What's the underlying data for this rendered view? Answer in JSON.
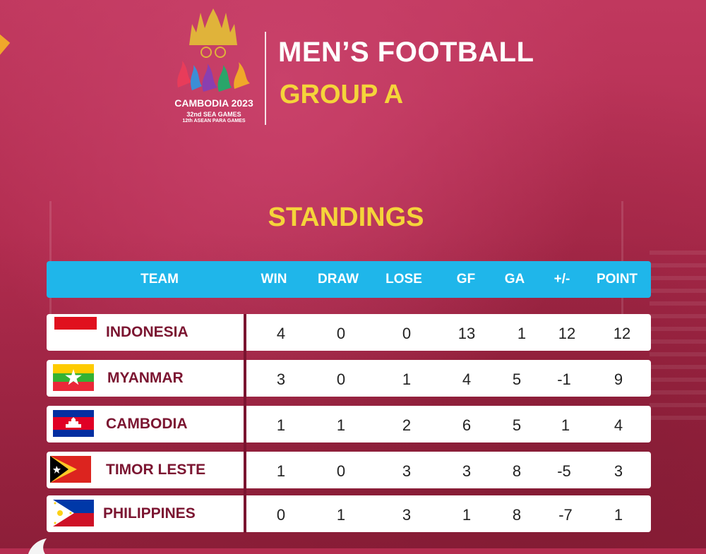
{
  "logo": {
    "name": "CAMBODIA 2023",
    "line2": "32nd SEA GAMES",
    "line3": "12th ASEAN PARA GAMES"
  },
  "title": "MEN’S FOOTBALL",
  "subtitle": "GROUP A",
  "section_title": "STANDINGS",
  "columns": [
    "TEAM",
    "WIN",
    "DRAW",
    "LOSE",
    "GF",
    "GA",
    "+/-",
    "POINT"
  ],
  "teams": [
    {
      "name": "INDONESIA",
      "flag": "indonesia-flag",
      "win": "4",
      "draw": "0",
      "lose": "0",
      "gf": "13",
      "ga": "1",
      "diff": "12",
      "point": "12"
    },
    {
      "name": "MYANMAR",
      "flag": "myanmar-flag",
      "win": "3",
      "draw": "0",
      "lose": "1",
      "gf": "4",
      "ga": "5",
      "diff": "-1",
      "point": "9"
    },
    {
      "name": "CAMBODIA",
      "flag": "cambodia-flag",
      "win": "1",
      "draw": "1",
      "lose": "2",
      "gf": "6",
      "ga": "5",
      "diff": "1",
      "point": "4"
    },
    {
      "name": "TIMOR LESTE",
      "flag": "timor-leste-flag",
      "win": "1",
      "draw": "0",
      "lose": "3",
      "gf": "3",
      "ga": "8",
      "diff": "-5",
      "point": "3"
    },
    {
      "name": "PHILIPPINES",
      "flag": "philippines-flag",
      "win": "0",
      "draw": "1",
      "lose": "3",
      "gf": "1",
      "ga": "8",
      "diff": "-7",
      "point": "1"
    }
  ],
  "colors": {
    "background": "#b52d50",
    "header": "#1fb6ea",
    "team_text": "#7b1531",
    "title_yellow": "#f5d43a",
    "accent_orange": "#f0a82a"
  }
}
